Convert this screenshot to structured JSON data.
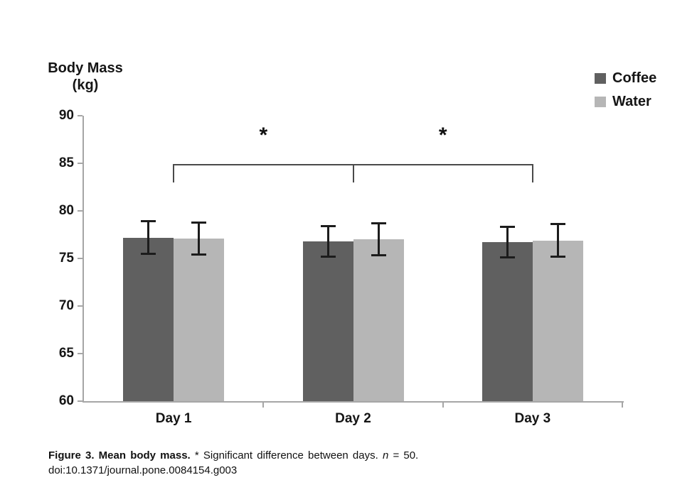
{
  "chart_data": {
    "type": "bar",
    "title": "",
    "ylabel": "Body Mass (kg)",
    "ylabel_lines": [
      "Body Mass",
      "(kg)"
    ],
    "categories": [
      "Day 1",
      "Day 2",
      "Day 3"
    ],
    "series": [
      {
        "name": "Coffee",
        "color": "#606060",
        "values": [
          77.2,
          76.8,
          76.7
        ],
        "errors": [
          1.8,
          1.7,
          1.7
        ]
      },
      {
        "name": "Water",
        "color": "#b6b6b6",
        "values": [
          77.1,
          77.0,
          76.9
        ],
        "errors": [
          1.8,
          1.8,
          1.8
        ]
      }
    ],
    "ylim": [
      60,
      90
    ],
    "yticks": [
      90,
      85,
      80,
      75,
      70,
      65,
      60
    ],
    "grid": false,
    "legend_position": "top-right",
    "axis_color": "#a6a6a6",
    "error_bar_color": "#1c1c1c",
    "annotations": {
      "symbol": "*",
      "bracket": {
        "from_category": 0,
        "mid_category": 1,
        "to_category": 2,
        "y_kg": 84.9,
        "drop_kg": 1.9
      },
      "asterisk_pairs": [
        [
          0,
          1
        ],
        [
          1,
          2
        ]
      ]
    }
  },
  "caption": {
    "bold_text": "Figure 3. Mean body mass.",
    "regular_text": " * Significant difference between days. ",
    "n_var": "n",
    "n_value": " = 50.",
    "doi": "doi:10.1371/journal.pone.0084154.g003"
  }
}
